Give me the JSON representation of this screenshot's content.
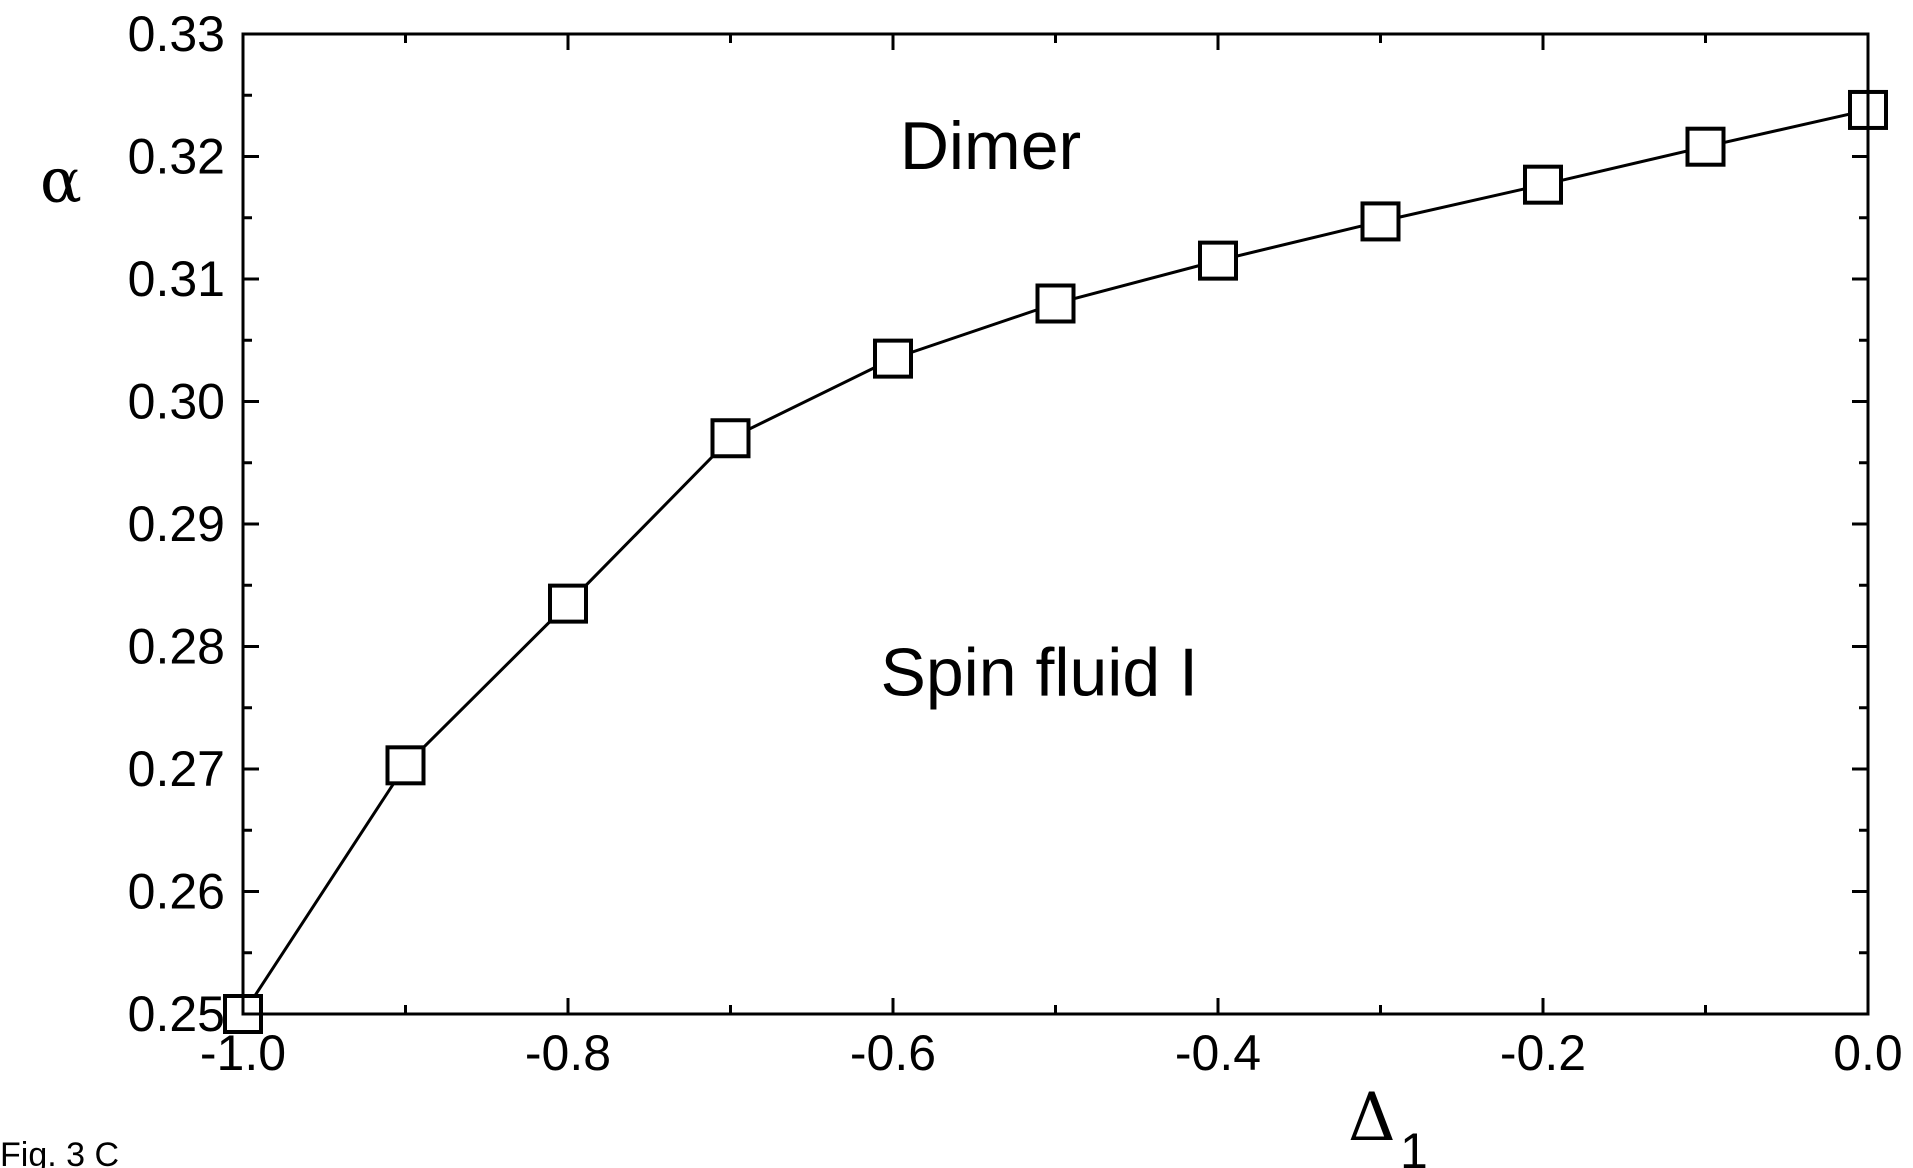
{
  "chart_data": {
    "type": "line",
    "xlabel": "Δ",
    "xlabel_subscript": "1",
    "ylabel": "α",
    "xlim": [
      -1.0,
      0.0
    ],
    "ylim": [
      0.25,
      0.33
    ],
    "x_ticks": [
      "-1.0",
      "-0.8",
      "-0.6",
      "-0.4",
      "-0.2",
      "0.0"
    ],
    "x_tick_values": [
      -1.0,
      -0.8,
      -0.6,
      -0.4,
      -0.2,
      0.0
    ],
    "y_ticks": [
      "0.25",
      "0.26",
      "0.27",
      "0.28",
      "0.29",
      "0.30",
      "0.31",
      "0.32",
      "0.33"
    ],
    "y_tick_values": [
      0.25,
      0.26,
      0.27,
      0.28,
      0.29,
      0.3,
      0.31,
      0.32,
      0.33
    ],
    "grid": false,
    "marker": "open-square",
    "series": [
      {
        "x": [
          -1.0,
          -0.9,
          -0.8,
          -0.7,
          -0.6,
          -0.5,
          -0.4,
          -0.3,
          -0.2,
          -0.1,
          0.0
        ],
        "y": [
          0.25,
          0.2703,
          0.2835,
          0.297,
          0.3035,
          0.308,
          0.3115,
          0.3147,
          0.3177,
          0.3208,
          0.3238
        ]
      }
    ],
    "annotations": [
      {
        "text": "Dimer",
        "x": -0.54,
        "y": 0.319
      },
      {
        "text": "Spin fluid I",
        "x": -0.51,
        "y": 0.276
      }
    ]
  },
  "footer": "Fig. 3 C"
}
